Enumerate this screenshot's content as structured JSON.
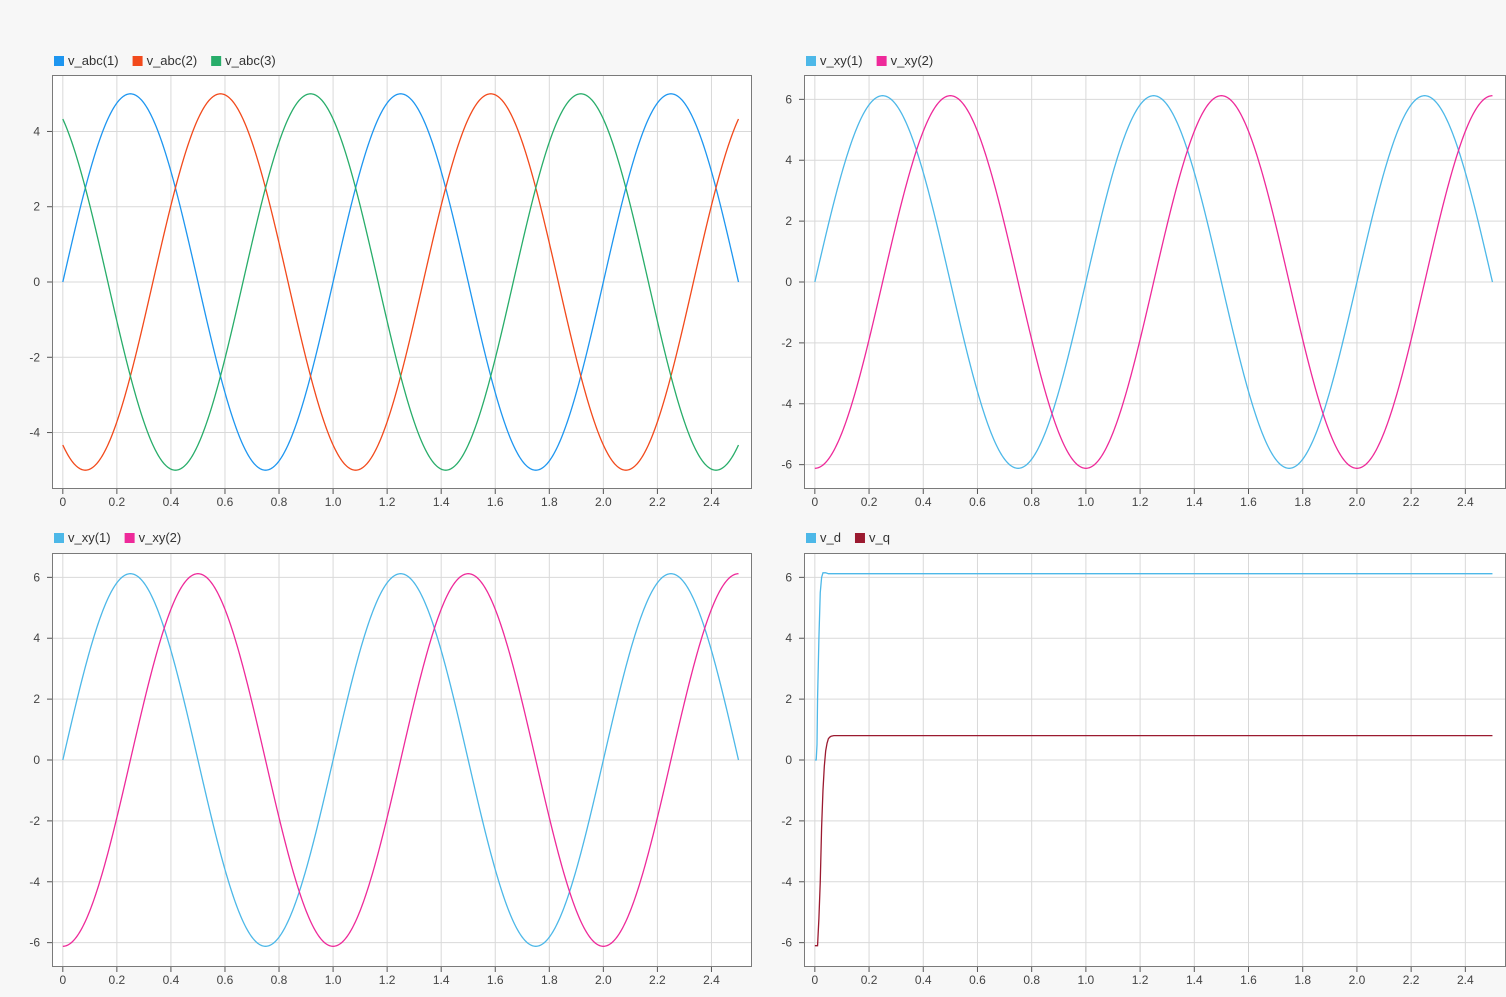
{
  "chart_data": [
    {
      "type": "line",
      "legend_position": "top-left",
      "grid": true,
      "xlim": [
        -0.04,
        2.55
      ],
      "ylim": [
        -5.5,
        5.5
      ],
      "xticks": [
        0,
        0.2,
        0.4,
        0.6,
        0.8,
        1.0,
        1.2,
        1.4,
        1.6,
        1.8,
        2.0,
        2.2,
        2.4
      ],
      "xtick_labels": [
        "0",
        "0.2",
        "0.4",
        "0.6",
        "0.8",
        "1.0",
        "1.2",
        "1.4",
        "1.6",
        "1.8",
        "2.0",
        "2.2",
        "2.4"
      ],
      "yticks": [
        -4,
        -2,
        0,
        2,
        4
      ],
      "ytick_labels": [
        "-4",
        "-2",
        "0",
        "2",
        "4"
      ],
      "x_range": [
        0,
        2.5
      ],
      "series": [
        {
          "name": "v_abc(1)",
          "color": "#1e96f0",
          "function": "sine",
          "amplitude": 5,
          "period": 1.0,
          "phase_deg": 0
        },
        {
          "name": "v_abc(2)",
          "color": "#f24a1c",
          "function": "sine",
          "amplitude": 5,
          "period": 1.0,
          "phase_deg": -120
        },
        {
          "name": "v_abc(3)",
          "color": "#28ad6a",
          "function": "sine",
          "amplitude": 5,
          "period": 1.0,
          "phase_deg": 120
        }
      ]
    },
    {
      "type": "line",
      "legend_position": "top-left",
      "grid": true,
      "xlim": [
        -0.04,
        2.55
      ],
      "ylim": [
        -6.8,
        6.8
      ],
      "xticks": [
        0,
        0.2,
        0.4,
        0.6,
        0.8,
        1.0,
        1.2,
        1.4,
        1.6,
        1.8,
        2.0,
        2.2,
        2.4
      ],
      "xtick_labels": [
        "0",
        "0.2",
        "0.4",
        "0.6",
        "0.8",
        "1.0",
        "1.2",
        "1.4",
        "1.6",
        "1.8",
        "2.0",
        "2.2",
        "2.4"
      ],
      "yticks": [
        -6,
        -4,
        -2,
        0,
        2,
        4,
        6
      ],
      "ytick_labels": [
        "-6",
        "-4",
        "-2",
        "0",
        "2",
        "4",
        "6"
      ],
      "x_range": [
        0,
        2.5
      ],
      "series": [
        {
          "name": "v_xy(1)",
          "color": "#4db8e8",
          "function": "sine",
          "amplitude": 6.12,
          "period": 1.0,
          "phase_deg": 0
        },
        {
          "name": "v_xy(2)",
          "color": "#ee2a9a",
          "function": "sine",
          "amplitude": 6.12,
          "period": 1.0,
          "phase_deg": -90
        }
      ]
    },
    {
      "type": "line",
      "legend_position": "top-left",
      "grid": true,
      "xlim": [
        -0.04,
        2.55
      ],
      "ylim": [
        -6.8,
        6.8
      ],
      "xticks": [
        0,
        0.2,
        0.4,
        0.6,
        0.8,
        1.0,
        1.2,
        1.4,
        1.6,
        1.8,
        2.0,
        2.2,
        2.4
      ],
      "xtick_labels": [
        "0",
        "0.2",
        "0.4",
        "0.6",
        "0.8",
        "1.0",
        "1.2",
        "1.4",
        "1.6",
        "1.8",
        "2.0",
        "2.2",
        "2.4"
      ],
      "yticks": [
        -6,
        -4,
        -2,
        0,
        2,
        4,
        6
      ],
      "ytick_labels": [
        "-6",
        "-4",
        "-2",
        "0",
        "2",
        "4",
        "6"
      ],
      "x_range": [
        0,
        2.5
      ],
      "series": [
        {
          "name": "v_xy(1)",
          "color": "#4db8e8",
          "function": "sine",
          "amplitude": 6.12,
          "period": 1.0,
          "phase_deg": 0
        },
        {
          "name": "v_xy(2)",
          "color": "#ee2a9a",
          "function": "sine",
          "amplitude": 6.12,
          "period": 1.0,
          "phase_deg": -90
        }
      ]
    },
    {
      "type": "line",
      "legend_position": "top-left",
      "grid": true,
      "xlim": [
        -0.04,
        2.55
      ],
      "ylim": [
        -6.8,
        6.8
      ],
      "xticks": [
        0,
        0.2,
        0.4,
        0.6,
        0.8,
        1.0,
        1.2,
        1.4,
        1.6,
        1.8,
        2.0,
        2.2,
        2.4
      ],
      "xtick_labels": [
        "0",
        "0.2",
        "0.4",
        "0.6",
        "0.8",
        "1.0",
        "1.2",
        "1.4",
        "1.6",
        "1.8",
        "2.0",
        "2.2",
        "2.4"
      ],
      "yticks": [
        -6,
        -4,
        -2,
        0,
        2,
        4,
        6
      ],
      "ytick_labels": [
        "-6",
        "-4",
        "-2",
        "0",
        "2",
        "4",
        "6"
      ],
      "series": [
        {
          "name": "v_d",
          "color": "#4db8e8",
          "function": "points",
          "x": [
            0,
            0.005,
            0.008,
            0.01,
            0.015,
            0.02,
            0.025,
            0.03,
            0.04,
            0.05,
            0.06,
            0.08,
            0.1,
            2.5
          ],
          "y": [
            0,
            0,
            0.5,
            2.0,
            4.0,
            5.5,
            6.0,
            6.15,
            6.15,
            6.12,
            6.12,
            6.12,
            6.12,
            6.12
          ]
        },
        {
          "name": "v_q",
          "color": "#9b1a30",
          "function": "points",
          "x": [
            0,
            0.01,
            0.015,
            0.02,
            0.025,
            0.03,
            0.035,
            0.04,
            0.045,
            0.05,
            0.055,
            0.06,
            0.07,
            0.08,
            0.1,
            2.5
          ],
          "y": [
            -6.1,
            -6.1,
            -5.2,
            -4.0,
            -2.2,
            -1.0,
            -0.2,
            0.3,
            0.55,
            0.7,
            0.75,
            0.78,
            0.8,
            0.8,
            0.8,
            0.8
          ]
        }
      ]
    }
  ]
}
